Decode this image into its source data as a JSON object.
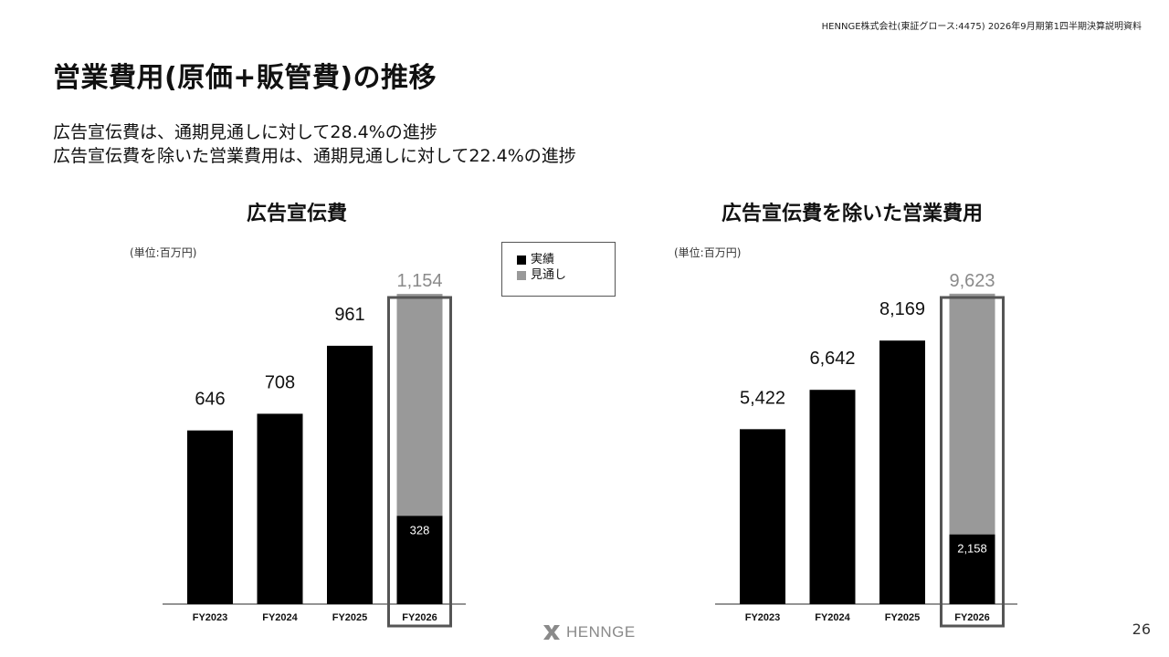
{
  "header": {
    "note": "HENNGE株式会社(東証グロース:4475) 2026年9月期第1四半期決算説明資料"
  },
  "page_title": "営業費用(原価+販管費)の推移",
  "lead": [
    "広告宣伝費は、通期見通しに対して28.4%の進捗",
    "広告宣伝費を除いた営業費用は、通期見通しに対して22.4%の進捗"
  ],
  "legend": {
    "actual": "実績",
    "forecast": "見通し"
  },
  "colors": {
    "actual": "#000000",
    "forecast": "#999999",
    "highlight_box": "#555555",
    "axis": "#555555"
  },
  "chart_data": [
    {
      "type": "bar",
      "title": "広告宣伝費",
      "unit": "(単位:百万円)",
      "categories": [
        "FY2023",
        "FY2024",
        "FY2025",
        "FY2026"
      ],
      "values": [
        646,
        708,
        961,
        328
      ],
      "value_labels": [
        "646",
        "708",
        "961",
        "328"
      ],
      "forecast": {
        "category": "FY2026",
        "total": 1154,
        "total_label": "1,154"
      },
      "ymax": 1290
    },
    {
      "type": "bar",
      "title": "広告宣伝費を除いた営業費用",
      "unit": "(単位:百万円)",
      "categories": [
        "FY2023",
        "FY2024",
        "FY2025",
        "FY2026"
      ],
      "values": [
        5422,
        6642,
        8169,
        2158
      ],
      "value_labels": [
        "5,422",
        "6,642",
        "8,169",
        "2,158"
      ],
      "forecast": {
        "category": "FY2026",
        "total": 9623,
        "total_label": "9,623"
      },
      "ymax": 10750
    }
  ],
  "footer": {
    "logo_text": "HENNGE",
    "page_number": "26"
  }
}
